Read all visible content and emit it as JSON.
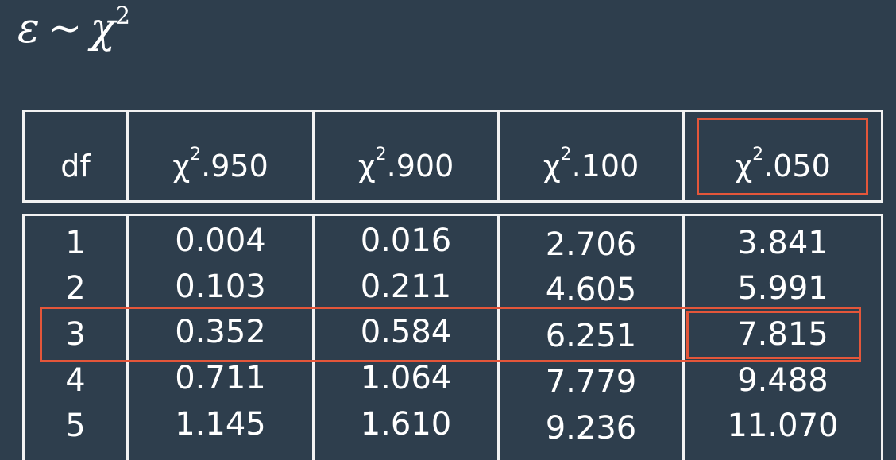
{
  "formula": {
    "lhs": "ε",
    "op": "∼",
    "rhs": "χ",
    "exp": "2"
  },
  "table": {
    "headers": [
      {
        "label": "df"
      },
      {
        "base": "χ",
        "sup": "2",
        "sub": ".950"
      },
      {
        "base": "χ",
        "sup": "2",
        "sub": ".900"
      },
      {
        "base": "χ",
        "sup": "2",
        "sub": ".100"
      },
      {
        "base": "χ",
        "sup": "2",
        "sub": ".050"
      }
    ],
    "rows": [
      [
        "1",
        "0.004",
        "0.016",
        "2.706",
        "3.841"
      ],
      [
        "2",
        "0.103",
        "0.211",
        "4.605",
        "5.991"
      ],
      [
        "3",
        "0.352",
        "0.584",
        "6.251",
        "7.815"
      ],
      [
        "4",
        "0.711",
        "1.064",
        "7.779",
        "9.488"
      ],
      [
        "5",
        "1.145",
        "1.610",
        "9.236",
        "11.070"
      ]
    ]
  },
  "highlights": {
    "color": "#e4563a",
    "column_header_index": 4,
    "row_index": 2,
    "cell": [
      2,
      4
    ]
  }
}
